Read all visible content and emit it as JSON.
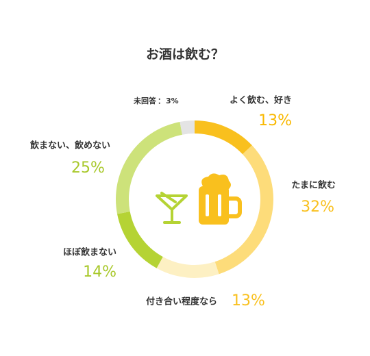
{
  "chart_data": {
    "type": "pie",
    "title": "お酒は飲む？",
    "categories": [
      "よく飲む、好き",
      "たまに飲む",
      "付き合い程度なら",
      "ほぼ飲まない",
      "飲まない、飲めない",
      "未回答"
    ],
    "values": [
      13,
      32,
      13,
      14,
      25,
      3
    ],
    "value_labels": [
      "13%",
      "32%",
      "13%",
      "14%",
      "25%",
      "3%"
    ],
    "colors": [
      "#f9c01e",
      "#fddc7a",
      "#fdf0c3",
      "#b5d334",
      "#cde27a",
      "#e4e4e4"
    ]
  }
}
